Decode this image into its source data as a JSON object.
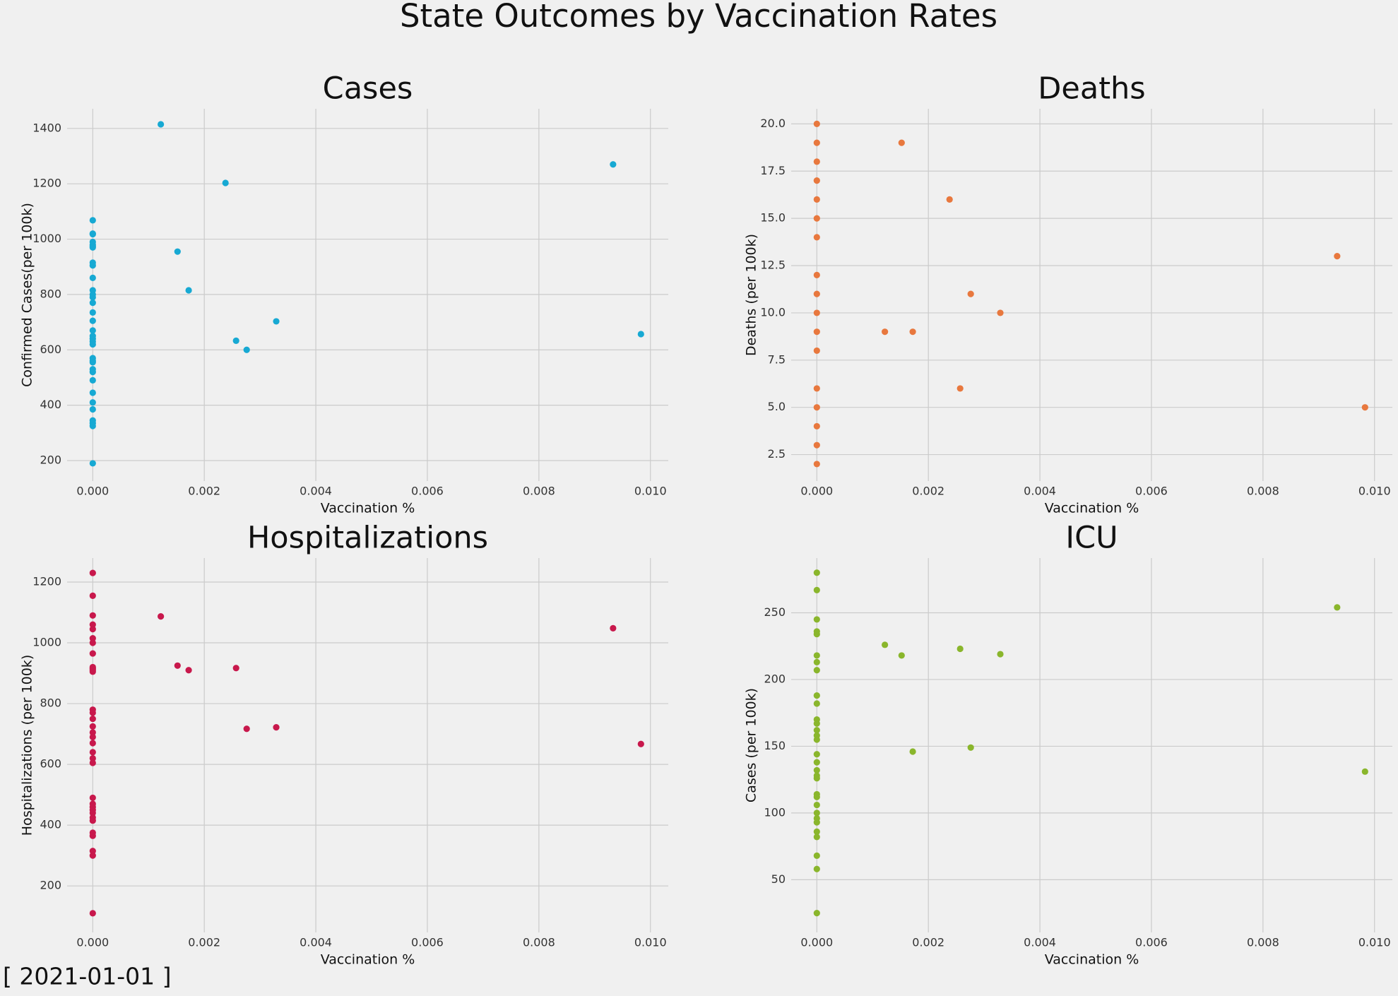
{
  "title": "State Outcomes by Vaccination Rates",
  "footer": "[ 2021-01-01 ]",
  "chart_data": [
    {
      "type": "scatter",
      "title": "Cases",
      "xlabel": "Vaccination %",
      "ylabel": "Confirmed Cases(per 100k)",
      "color": "#17a9d3",
      "grid": true,
      "x": [
        0,
        0,
        0,
        0,
        0,
        0,
        0,
        0,
        0,
        0,
        0,
        0,
        0,
        0,
        0,
        0,
        0,
        0,
        0,
        0,
        0,
        0,
        0,
        0,
        0,
        0,
        0,
        0,
        0,
        0,
        0,
        0,
        0,
        0,
        0.00122,
        0.00152,
        0.00172,
        0.00238,
        0.00257,
        0.00276,
        0.00329,
        0.00933,
        0.00983
      ],
      "values": [
        1068,
        1020,
        1018,
        990,
        980,
        975,
        970,
        915,
        905,
        860,
        815,
        800,
        790,
        770,
        735,
        705,
        670,
        650,
        640,
        630,
        620,
        570,
        560,
        555,
        530,
        520,
        490,
        445,
        410,
        385,
        345,
        335,
        325,
        190,
        1415,
        955,
        815,
        1203,
        633,
        600,
        703,
        1270,
        657
      ],
      "xlim": [
        -0.00046,
        0.01032
      ],
      "ylim": [
        126,
        1471
      ],
      "xticks": [
        {
          "value": 0,
          "label": "0.000"
        },
        {
          "value": 0.002,
          "label": "0.002"
        },
        {
          "value": 0.004,
          "label": "0.004"
        },
        {
          "value": 0.006,
          "label": "0.006"
        },
        {
          "value": 0.008,
          "label": "0.008"
        },
        {
          "value": 0.01,
          "label": "0.010"
        }
      ],
      "yticks": [
        200,
        400,
        600,
        800,
        1000,
        1200,
        1400
      ]
    },
    {
      "type": "scatter",
      "title": "Deaths",
      "xlabel": "Vaccination %",
      "ylabel": "Deaths (per 100k)",
      "color": "#e8783e",
      "grid": true,
      "x": [
        0,
        0,
        0,
        0,
        0,
        0,
        0,
        0,
        0,
        0,
        0,
        0,
        0,
        0,
        0,
        0,
        0,
        0.00122,
        0.00152,
        0.00172,
        0.00238,
        0.00257,
        0.00276,
        0.00329,
        0.00933,
        0.00983
      ],
      "values": [
        20,
        19,
        18,
        17,
        16,
        15,
        14,
        12,
        11,
        10,
        9,
        8,
        6,
        5,
        4,
        3,
        2,
        9,
        19,
        9,
        16,
        6,
        11,
        10,
        13,
        5
      ],
      "xlim": [
        -0.00046,
        0.01032
      ],
      "ylim": [
        1.1,
        20.8
      ],
      "xticks": [
        {
          "value": 0,
          "label": "0.000"
        },
        {
          "value": 0.002,
          "label": "0.002"
        },
        {
          "value": 0.004,
          "label": "0.004"
        },
        {
          "value": 0.006,
          "label": "0.006"
        },
        {
          "value": 0.008,
          "label": "0.008"
        },
        {
          "value": 0.01,
          "label": "0.010"
        }
      ],
      "yticks": [
        2.5,
        {
          "value": 5,
          "label": "5.0"
        },
        7.5,
        {
          "value": 10,
          "label": "10.0"
        },
        12.5,
        {
          "value": 15,
          "label": "15.0"
        },
        17.5,
        {
          "value": 20,
          "label": "20.0"
        }
      ]
    },
    {
      "type": "scatter",
      "title": "Hospitalizations",
      "xlabel": "Vaccination %",
      "ylabel": "Hospitalizations (per 100k)",
      "color": "#c8184c",
      "grid": true,
      "x": [
        0,
        0,
        0,
        0,
        0,
        0,
        0,
        0,
        0,
        0,
        0,
        0,
        0,
        0,
        0,
        0,
        0,
        0,
        0,
        0,
        0,
        0,
        0,
        0,
        0,
        0,
        0,
        0,
        0,
        0,
        0,
        0,
        0,
        0,
        0.00122,
        0.00152,
        0.00172,
        0.00257,
        0.00276,
        0.00329,
        0.00933,
        0.00983
      ],
      "values": [
        1230,
        1155,
        1090,
        1060,
        1045,
        1015,
        1000,
        965,
        920,
        915,
        910,
        905,
        780,
        770,
        750,
        725,
        705,
        690,
        670,
        640,
        620,
        605,
        490,
        470,
        460,
        450,
        440,
        425,
        415,
        375,
        365,
        315,
        300,
        110,
        1087,
        925,
        910,
        917,
        717,
        722,
        1048,
        667
      ],
      "xlim": [
        -0.00046,
        0.01032
      ],
      "ylim": [
        47,
        1279
      ],
      "xticks": [
        {
          "value": 0,
          "label": "0.000"
        },
        {
          "value": 0.002,
          "label": "0.002"
        },
        {
          "value": 0.004,
          "label": "0.004"
        },
        {
          "value": 0.006,
          "label": "0.006"
        },
        {
          "value": 0.008,
          "label": "0.008"
        },
        {
          "value": 0.01,
          "label": "0.010"
        }
      ],
      "yticks": [
        200,
        400,
        600,
        800,
        1000,
        1200
      ]
    },
    {
      "type": "scatter",
      "title": "ICU",
      "xlabel": "Vaccination %",
      "ylabel": "Cases (per 100k)",
      "color": "#8ab62c",
      "grid": true,
      "x": [
        0,
        0,
        0,
        0,
        0,
        0,
        0,
        0,
        0,
        0,
        0,
        0,
        0,
        0,
        0,
        0,
        0,
        0,
        0,
        0,
        0,
        0,
        0,
        0,
        0,
        0,
        0,
        0,
        0,
        0,
        0,
        0.00122,
        0.00152,
        0.00172,
        0.00257,
        0.00276,
        0.00329,
        0.00933,
        0.00983
      ],
      "values": [
        280,
        267,
        245,
        236,
        234,
        218,
        213,
        207,
        188,
        182,
        170,
        167,
        162,
        158,
        155,
        144,
        138,
        132,
        128,
        126,
        114,
        112,
        106,
        100,
        96,
        93,
        86,
        82,
        68,
        58,
        25,
        226,
        218,
        146,
        223,
        149,
        219,
        254,
        131
      ],
      "xlim": [
        -0.00046,
        0.01032
      ],
      "ylim": [
        10.5,
        291
      ],
      "xticks": [
        {
          "value": 0,
          "label": "0.000"
        },
        {
          "value": 0.002,
          "label": "0.002"
        },
        {
          "value": 0.004,
          "label": "0.004"
        },
        {
          "value": 0.006,
          "label": "0.006"
        },
        {
          "value": 0.008,
          "label": "0.008"
        },
        {
          "value": 0.01,
          "label": "0.010"
        }
      ],
      "yticks": [
        50,
        100,
        150,
        200,
        250
      ]
    }
  ]
}
